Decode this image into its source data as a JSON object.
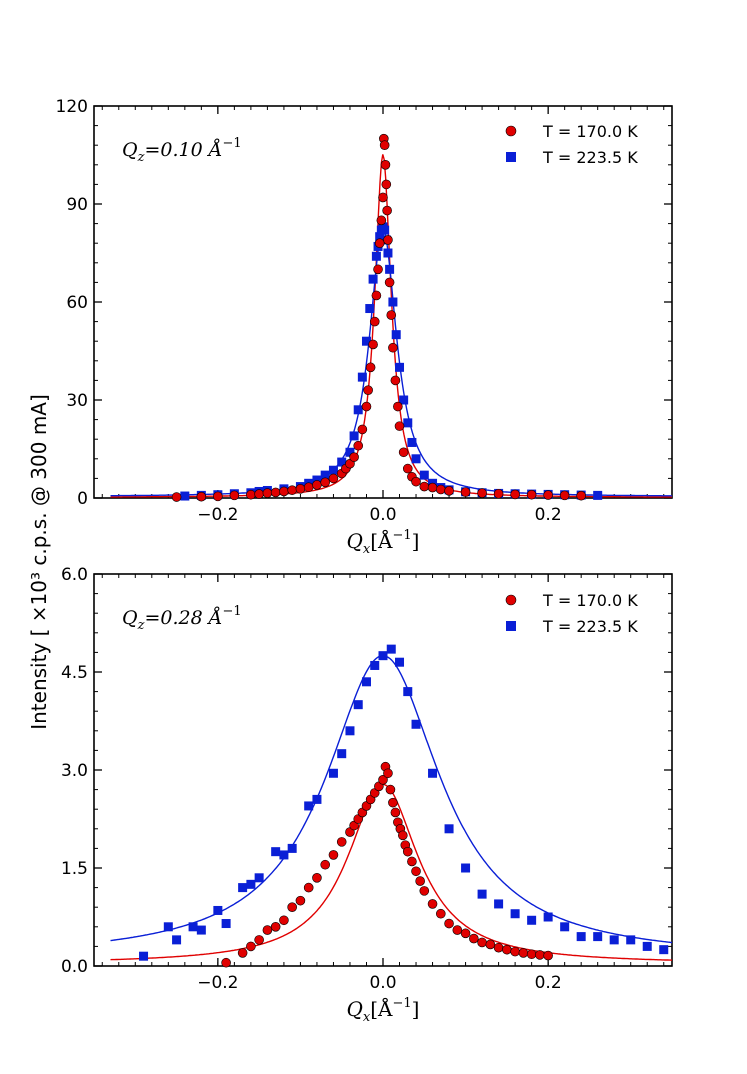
{
  "figure": {
    "ylabel": "Intensity [ ×10³ c.p.s. @ 300 mA]",
    "colors": {
      "red": "#e00000",
      "blue": "#0a1fd6",
      "edge": "#000000"
    }
  },
  "chart_data": [
    {
      "type": "scatter",
      "title": "",
      "annotation": "Q_z = 0.10 Å⁻¹",
      "annotation_main": "Q",
      "annotation_sub": "z",
      "annotation_rest": "=0.10 Å",
      "annotation_sup": "−1",
      "xlabel_main": "Q",
      "xlabel_sub": "x",
      "xlabel_rest": "[Å",
      "xlabel_sup": "−1",
      "xlabel_end": "]",
      "xlim": [
        -0.35,
        0.35
      ],
      "ylim": [
        0,
        120
      ],
      "xticks": [
        -0.2,
        0.0,
        0.2
      ],
      "xtick_labels": [
        "−0.2",
        "0.0",
        "0.2"
      ],
      "yticks": [
        0,
        30,
        60,
        90,
        120
      ],
      "ytick_labels": [
        "0",
        "30",
        "60",
        "90",
        "120"
      ],
      "legend": [
        "T = 170.0 K",
        "T = 223.5 K"
      ],
      "legend_position": "top-right",
      "series": [
        {
          "name": "T = 170.0 K",
          "marker": "circle",
          "color": "#e00000",
          "x": [
            -0.25,
            -0.22,
            -0.2,
            -0.18,
            -0.16,
            -0.15,
            -0.14,
            -0.13,
            -0.12,
            -0.11,
            -0.1,
            -0.09,
            -0.08,
            -0.07,
            -0.06,
            -0.05,
            -0.045,
            -0.04,
            -0.035,
            -0.03,
            -0.025,
            -0.02,
            -0.018,
            -0.015,
            -0.012,
            -0.01,
            -0.008,
            -0.006,
            -0.004,
            -0.002,
            0.0,
            0.001,
            0.002,
            0.003,
            0.004,
            0.005,
            0.006,
            0.008,
            0.01,
            0.012,
            0.015,
            0.018,
            0.02,
            0.025,
            0.03,
            0.035,
            0.04,
            0.05,
            0.06,
            0.07,
            0.08,
            0.1,
            0.12,
            0.14,
            0.16,
            0.18,
            0.2,
            0.22,
            0.24
          ],
          "y": [
            0.3,
            0.4,
            0.5,
            0.8,
            1.0,
            1.2,
            1.5,
            1.7,
            2.0,
            2.4,
            2.8,
            3.3,
            4.0,
            4.8,
            6.0,
            7.5,
            9,
            10.5,
            12.5,
            16,
            21,
            28,
            33,
            40,
            47,
            54,
            62,
            70,
            78,
            85,
            92,
            110,
            108,
            102,
            96,
            88,
            79,
            66,
            56,
            46,
            36,
            28,
            22,
            14,
            9,
            6.5,
            5,
            3.5,
            3.2,
            2.6,
            2.2,
            1.8,
            1.5,
            1.3,
            1.1,
            1.0,
            0.9,
            0.8,
            0.7
          ]
        },
        {
          "name": "T = 223.5 K",
          "marker": "square",
          "color": "#0a1fd6",
          "x": [
            -0.24,
            -0.22,
            -0.2,
            -0.18,
            -0.16,
            -0.15,
            -0.14,
            -0.12,
            -0.1,
            -0.09,
            -0.08,
            -0.07,
            -0.06,
            -0.05,
            -0.04,
            -0.035,
            -0.03,
            -0.025,
            -0.02,
            -0.016,
            -0.012,
            -0.008,
            -0.006,
            -0.004,
            -0.002,
            0.0,
            0.002,
            0.004,
            0.006,
            0.008,
            0.012,
            0.016,
            0.02,
            0.025,
            0.03,
            0.035,
            0.04,
            0.05,
            0.06,
            0.07,
            0.08,
            0.1,
            0.12,
            0.14,
            0.16,
            0.18,
            0.2,
            0.22,
            0.24,
            0.26
          ],
          "y": [
            0.6,
            0.8,
            1.0,
            1.3,
            1.6,
            2.0,
            2.3,
            2.8,
            3.5,
            4.5,
            5.5,
            7,
            8.5,
            11,
            14,
            19,
            27,
            37,
            48,
            58,
            67,
            74,
            77,
            80,
            82,
            83,
            82,
            79,
            75,
            70,
            60,
            50,
            40,
            30,
            23,
            17,
            12,
            7,
            4.5,
            3.2,
            2.5,
            1.9,
            1.6,
            1.4,
            1.3,
            1.2,
            1.1,
            1.0,
            0.9,
            0.8
          ]
        }
      ]
    },
    {
      "type": "scatter",
      "title": "",
      "annotation": "Q_z = 0.28 Å⁻¹",
      "annotation_main": "Q",
      "annotation_sub": "z",
      "annotation_rest": "=0.28 Å",
      "annotation_sup": "−1",
      "xlabel_main": "Q",
      "xlabel_sub": "x",
      "xlabel_rest": "[Å",
      "xlabel_sup": "−1",
      "xlabel_end": "]",
      "xlim": [
        -0.35,
        0.35
      ],
      "ylim": [
        0,
        6.0
      ],
      "xticks": [
        -0.2,
        0.0,
        0.2
      ],
      "xtick_labels": [
        "−0.2",
        "0.0",
        "0.2"
      ],
      "yticks": [
        0,
        1.5,
        3.0,
        4.5,
        6.0
      ],
      "ytick_labels": [
        "0.0",
        "1.5",
        "3.0",
        "4.5",
        "6.0"
      ],
      "legend": [
        "T = 170.0 K",
        "T = 223.5 K"
      ],
      "legend_position": "top-right",
      "series": [
        {
          "name": "T = 170.0 K",
          "marker": "circle",
          "color": "#e00000",
          "x": [
            -0.19,
            -0.17,
            -0.16,
            -0.15,
            -0.14,
            -0.13,
            -0.12,
            -0.11,
            -0.1,
            -0.09,
            -0.08,
            -0.07,
            -0.06,
            -0.05,
            -0.04,
            -0.035,
            -0.03,
            -0.025,
            -0.02,
            -0.015,
            -0.01,
            -0.005,
            0.0,
            0.003,
            0.006,
            0.009,
            0.012,
            0.015,
            0.018,
            0.021,
            0.024,
            0.027,
            0.03,
            0.035,
            0.04,
            0.045,
            0.05,
            0.06,
            0.07,
            0.08,
            0.09,
            0.1,
            0.11,
            0.12,
            0.13,
            0.14,
            0.15,
            0.16,
            0.17,
            0.18,
            0.19,
            0.2
          ],
          "y": [
            0.05,
            0.2,
            0.3,
            0.4,
            0.55,
            0.6,
            0.7,
            0.9,
            1.0,
            1.2,
            1.35,
            1.55,
            1.7,
            1.9,
            2.05,
            2.15,
            2.25,
            2.35,
            2.45,
            2.55,
            2.65,
            2.75,
            2.85,
            3.05,
            2.95,
            2.7,
            2.5,
            2.35,
            2.2,
            2.1,
            2.0,
            1.85,
            1.75,
            1.6,
            1.45,
            1.3,
            1.15,
            0.95,
            0.8,
            0.65,
            0.55,
            0.5,
            0.42,
            0.36,
            0.33,
            0.28,
            0.25,
            0.22,
            0.2,
            0.18,
            0.17,
            0.16
          ]
        },
        {
          "name": "T = 223.5 K",
          "marker": "square",
          "color": "#0a1fd6",
          "x": [
            -0.29,
            -0.26,
            -0.25,
            -0.23,
            -0.22,
            -0.2,
            -0.19,
            -0.17,
            -0.16,
            -0.15,
            -0.13,
            -0.12,
            -0.11,
            -0.09,
            -0.08,
            -0.06,
            -0.05,
            -0.04,
            -0.03,
            -0.02,
            -0.01,
            0.0,
            0.01,
            0.02,
            0.03,
            0.04,
            0.06,
            0.08,
            0.1,
            0.12,
            0.14,
            0.16,
            0.18,
            0.2,
            0.22,
            0.24,
            0.26,
            0.28,
            0.3,
            0.32,
            0.34
          ],
          "y": [
            0.15,
            0.6,
            0.4,
            0.6,
            0.55,
            0.85,
            0.65,
            1.2,
            1.25,
            1.35,
            1.75,
            1.7,
            1.8,
            2.45,
            2.55,
            2.95,
            3.25,
            3.6,
            4.0,
            4.35,
            4.6,
            4.75,
            4.85,
            4.65,
            4.2,
            3.7,
            2.95,
            2.1,
            1.5,
            1.1,
            0.95,
            0.8,
            0.7,
            0.75,
            0.6,
            0.45,
            0.45,
            0.4,
            0.4,
            0.3,
            0.25
          ]
        }
      ]
    }
  ]
}
